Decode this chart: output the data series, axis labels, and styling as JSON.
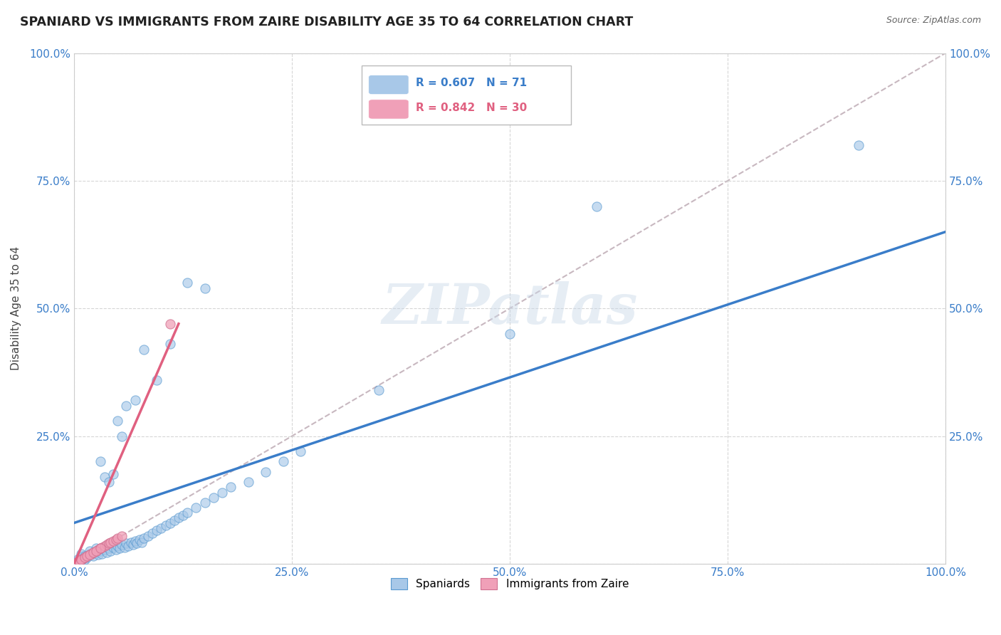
{
  "title": "SPANIARD VS IMMIGRANTS FROM ZAIRE DISABILITY AGE 35 TO 64 CORRELATION CHART",
  "source": "Source: ZipAtlas.com",
  "ylabel": "Disability Age 35 to 64",
  "xlim": [
    0,
    1
  ],
  "ylim": [
    0,
    1
  ],
  "xticks": [
    0.0,
    0.25,
    0.5,
    0.75,
    1.0
  ],
  "xticklabels": [
    "0.0%",
    "25.0%",
    "50.0%",
    "75.0%",
    "100.0%"
  ],
  "yticks": [
    0.0,
    0.25,
    0.5,
    0.75,
    1.0
  ],
  "yticklabels_left": [
    "",
    "25.0%",
    "50.0%",
    "75.0%",
    "100.0%"
  ],
  "yticklabels_right": [
    "",
    "25.0%",
    "50.0%",
    "75.0%",
    "100.0%"
  ],
  "legend_r_blue": "R = 0.607",
  "legend_n_blue": "N = 71",
  "legend_r_pink": "R = 0.842",
  "legend_n_pink": "N = 30",
  "legend_label_blue": "Spaniards",
  "legend_label_pink": "Immigrants from Zaire",
  "watermark": "ZIPatlas",
  "blue_color": "#A8C8E8",
  "pink_color": "#F0A0B8",
  "blue_line_color": "#3A7DC9",
  "pink_line_color": "#E06080",
  "diag_color": "#C8B8C0",
  "background_color": "#FFFFFF",
  "blue_scatter_x": [
    0.005,
    0.008,
    0.01,
    0.012,
    0.015,
    0.018,
    0.02,
    0.022,
    0.025,
    0.028,
    0.03,
    0.032,
    0.035,
    0.038,
    0.04,
    0.042,
    0.045,
    0.048,
    0.05,
    0.052,
    0.055,
    0.058,
    0.06,
    0.062,
    0.065,
    0.068,
    0.07,
    0.072,
    0.075,
    0.078,
    0.08,
    0.085,
    0.09,
    0.095,
    0.1,
    0.105,
    0.11,
    0.115,
    0.12,
    0.125,
    0.13,
    0.14,
    0.15,
    0.16,
    0.17,
    0.18,
    0.2,
    0.22,
    0.24,
    0.26,
    0.008,
    0.012,
    0.018,
    0.025,
    0.03,
    0.035,
    0.04,
    0.045,
    0.05,
    0.055,
    0.06,
    0.07,
    0.08,
    0.095,
    0.11,
    0.13,
    0.15,
    0.35,
    0.5,
    0.6,
    0.9
  ],
  "blue_scatter_y": [
    0.01,
    0.005,
    0.015,
    0.008,
    0.012,
    0.02,
    0.018,
    0.015,
    0.022,
    0.018,
    0.025,
    0.02,
    0.028,
    0.022,
    0.03,
    0.025,
    0.032,
    0.028,
    0.035,
    0.03,
    0.038,
    0.032,
    0.04,
    0.035,
    0.042,
    0.038,
    0.045,
    0.04,
    0.048,
    0.042,
    0.05,
    0.055,
    0.06,
    0.065,
    0.07,
    0.075,
    0.08,
    0.085,
    0.09,
    0.095,
    0.1,
    0.11,
    0.12,
    0.13,
    0.14,
    0.15,
    0.16,
    0.18,
    0.2,
    0.22,
    0.02,
    0.015,
    0.025,
    0.03,
    0.2,
    0.17,
    0.16,
    0.175,
    0.28,
    0.25,
    0.31,
    0.32,
    0.42,
    0.36,
    0.43,
    0.55,
    0.54,
    0.34,
    0.45,
    0.7,
    0.82
  ],
  "pink_scatter_x": [
    0.005,
    0.008,
    0.01,
    0.012,
    0.015,
    0.018,
    0.02,
    0.022,
    0.025,
    0.028,
    0.03,
    0.032,
    0.035,
    0.038,
    0.04,
    0.042,
    0.045,
    0.048,
    0.05,
    0.055,
    0.003,
    0.006,
    0.008,
    0.012,
    0.015,
    0.018,
    0.022,
    0.025,
    0.03,
    0.11
  ],
  "pink_scatter_y": [
    0.005,
    0.008,
    0.01,
    0.012,
    0.015,
    0.018,
    0.02,
    0.022,
    0.025,
    0.028,
    0.03,
    0.032,
    0.035,
    0.038,
    0.04,
    0.042,
    0.045,
    0.048,
    0.05,
    0.055,
    0.003,
    0.006,
    0.008,
    0.012,
    0.015,
    0.018,
    0.022,
    0.025,
    0.03,
    0.47
  ],
  "blue_line_x0": 0.0,
  "blue_line_y0": 0.08,
  "blue_line_x1": 1.0,
  "blue_line_y1": 0.65,
  "pink_line_x0": 0.0,
  "pink_line_y0": 0.0,
  "pink_line_x1": 0.12,
  "pink_line_y1": 0.47
}
